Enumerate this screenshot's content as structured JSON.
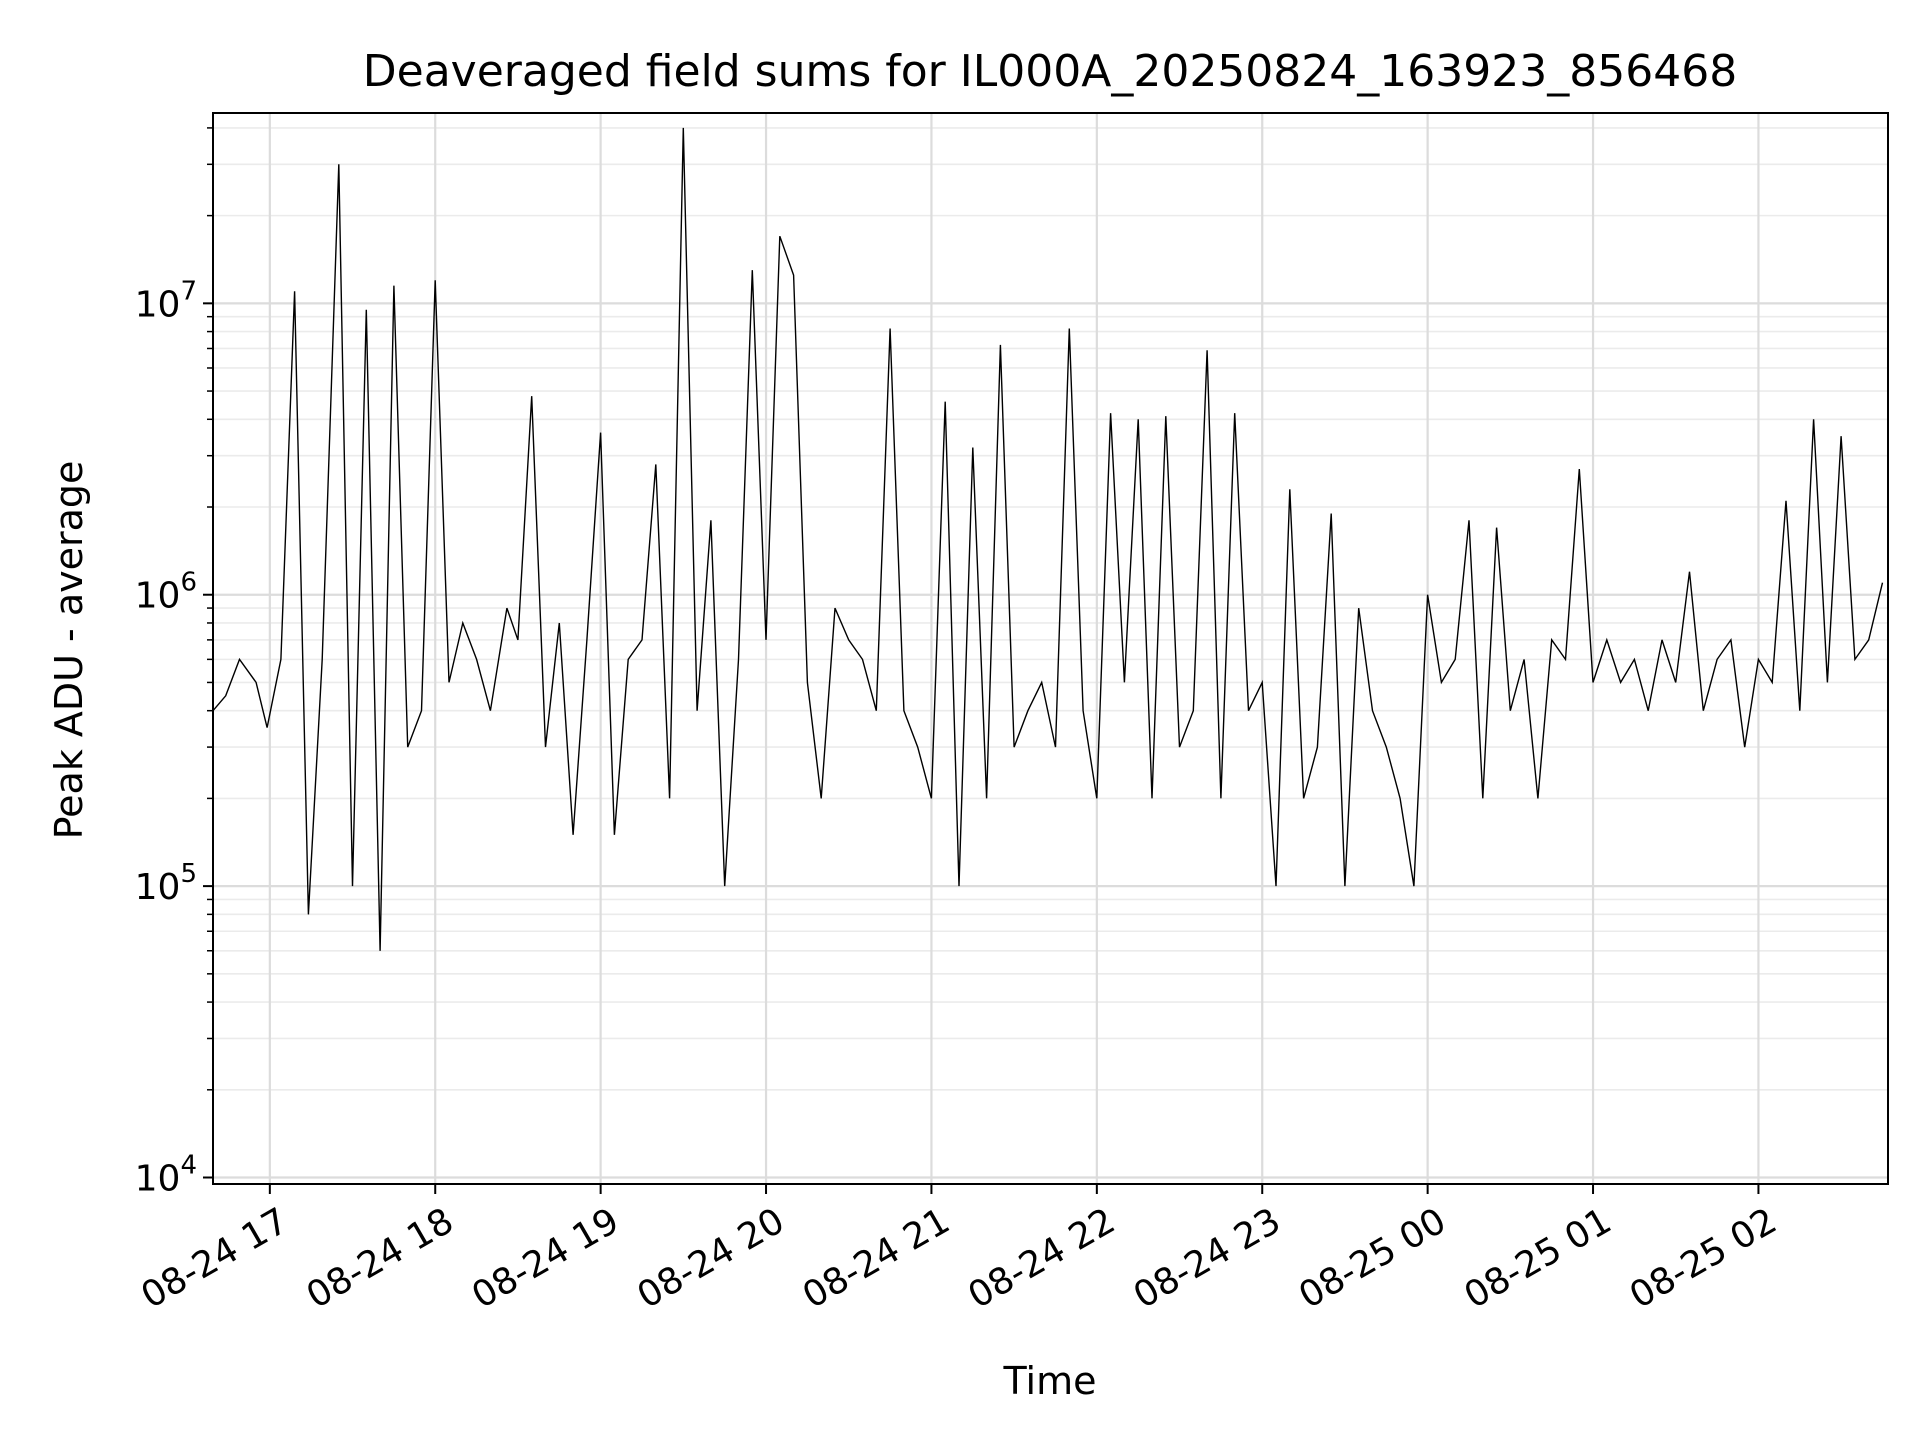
{
  "chart_data": {
    "type": "line",
    "title": "Deaveraged field sums for IL000A_20250824_163923_856468",
    "xlabel": "Time",
    "ylabel": "Peak ADU - average",
    "x_ticks": [
      "08-24 17",
      "08-24 18",
      "08-24 19",
      "08-24 20",
      "08-24 21",
      "08-24 22",
      "08-24 23",
      "08-25 00",
      "08-25 01",
      "08-25 02"
    ],
    "x_tick_values": [
      "2025-08-24T17:00",
      "2025-08-24T18:00",
      "2025-08-24T19:00",
      "2025-08-24T20:00",
      "2025-08-24T21:00",
      "2025-08-24T22:00",
      "2025-08-24T23:00",
      "2025-08-25T00:00",
      "2025-08-25T01:00",
      "2025-08-25T02:00"
    ],
    "xlim": [
      "2025-08-24T16:39:23",
      "2025-08-25T02:47:00"
    ],
    "y_scale": "log",
    "ylim": [
      9500,
      45000000
    ],
    "y_ticks": [
      {
        "base": "10",
        "exp": "4",
        "value": 10000
      },
      {
        "base": "10",
        "exp": "5",
        "value": 100000
      },
      {
        "base": "10",
        "exp": "6",
        "value": 1000000
      },
      {
        "base": "10",
        "exp": "7",
        "value": 10000000
      }
    ],
    "grid": true,
    "line_color": "#000000",
    "series": [
      {
        "x": [
          "2025-08-24T16:39:23",
          "2025-08-24T16:44:00",
          "2025-08-24T16:49:00",
          "2025-08-24T16:55:00",
          "2025-08-24T16:59:00",
          "2025-08-24T17:04:00",
          "2025-08-24T17:09:00",
          "2025-08-24T17:14:00",
          "2025-08-24T17:19:00",
          "2025-08-24T17:25:00",
          "2025-08-24T17:30:00",
          "2025-08-24T17:35:00",
          "2025-08-24T17:40:00",
          "2025-08-24T17:45:00",
          "2025-08-24T17:50:00",
          "2025-08-24T17:55:00",
          "2025-08-24T18:00:00",
          "2025-08-24T18:05:00",
          "2025-08-24T18:10:00",
          "2025-08-24T18:15:00",
          "2025-08-24T18:20:00",
          "2025-08-24T18:26:00",
          "2025-08-24T18:30:00",
          "2025-08-24T18:35:00",
          "2025-08-24T18:40:00",
          "2025-08-24T18:45:00",
          "2025-08-24T18:50:00",
          "2025-08-24T18:55:00",
          "2025-08-24T19:00:00",
          "2025-08-24T19:05:00",
          "2025-08-24T19:10:00",
          "2025-08-24T19:15:00",
          "2025-08-24T19:20:00",
          "2025-08-24T19:25:00",
          "2025-08-24T19:30:00",
          "2025-08-24T19:35:00",
          "2025-08-24T19:40:00",
          "2025-08-24T19:45:00",
          "2025-08-24T19:50:00",
          "2025-08-24T19:55:00",
          "2025-08-24T20:00:00",
          "2025-08-24T20:05:00",
          "2025-08-24T20:10:00",
          "2025-08-24T20:15:00",
          "2025-08-24T20:20:00",
          "2025-08-24T20:25:00",
          "2025-08-24T20:30:00",
          "2025-08-24T20:35:00",
          "2025-08-24T20:40:00",
          "2025-08-24T20:45:00",
          "2025-08-24T20:50:00",
          "2025-08-24T20:55:00",
          "2025-08-24T21:00:00",
          "2025-08-24T21:05:00",
          "2025-08-24T21:10:00",
          "2025-08-24T21:15:00",
          "2025-08-24T21:20:00",
          "2025-08-24T21:25:00",
          "2025-08-24T21:30:00",
          "2025-08-24T21:35:00",
          "2025-08-24T21:40:00",
          "2025-08-24T21:45:00",
          "2025-08-24T21:50:00",
          "2025-08-24T21:55:00",
          "2025-08-24T22:00:00",
          "2025-08-24T22:05:00",
          "2025-08-24T22:10:00",
          "2025-08-24T22:15:00",
          "2025-08-24T22:20:00",
          "2025-08-24T22:25:00",
          "2025-08-24T22:30:00",
          "2025-08-24T22:35:00",
          "2025-08-24T22:40:00",
          "2025-08-24T22:45:00",
          "2025-08-24T22:50:00",
          "2025-08-24T22:55:00",
          "2025-08-24T23:00:00",
          "2025-08-24T23:05:00",
          "2025-08-24T23:10:00",
          "2025-08-24T23:15:00",
          "2025-08-24T23:20:00",
          "2025-08-24T23:25:00",
          "2025-08-24T23:30:00",
          "2025-08-24T23:35:00",
          "2025-08-24T23:40:00",
          "2025-08-24T23:45:00",
          "2025-08-24T23:50:00",
          "2025-08-24T23:55:00",
          "2025-08-25T00:00:00",
          "2025-08-25T00:05:00",
          "2025-08-25T00:10:00",
          "2025-08-25T00:15:00",
          "2025-08-25T00:20:00",
          "2025-08-25T00:25:00",
          "2025-08-25T00:30:00",
          "2025-08-25T00:35:00",
          "2025-08-25T00:40:00",
          "2025-08-25T00:45:00",
          "2025-08-25T00:50:00",
          "2025-08-25T00:55:00",
          "2025-08-25T01:00:00",
          "2025-08-25T01:05:00",
          "2025-08-25T01:10:00",
          "2025-08-25T01:15:00",
          "2025-08-25T01:20:00",
          "2025-08-25T01:25:00",
          "2025-08-25T01:30:00",
          "2025-08-25T01:35:00",
          "2025-08-25T01:40:00",
          "2025-08-25T01:45:00",
          "2025-08-25T01:50:00",
          "2025-08-25T01:55:00",
          "2025-08-25T02:00:00",
          "2025-08-25T02:05:00",
          "2025-08-25T02:10:00",
          "2025-08-25T02:15:00",
          "2025-08-25T02:20:00",
          "2025-08-25T02:25:00",
          "2025-08-25T02:30:00",
          "2025-08-25T02:35:00",
          "2025-08-25T02:40:00",
          "2025-08-25T02:45:00"
        ],
        "values": [
          400000,
          450000,
          600000,
          500000,
          350000,
          600000,
          11000000,
          80000,
          600000,
          30000000,
          100000,
          9500000,
          60000,
          11500000,
          300000,
          400000,
          12000000,
          500000,
          800000,
          600000,
          400000,
          900000,
          700000,
          4800000,
          300000,
          800000,
          150000,
          700000,
          3600000,
          150000,
          600000,
          700000,
          2800000,
          200000,
          40000000,
          400000,
          1800000,
          100000,
          600000,
          13000000,
          700000,
          17000000,
          12500000,
          500000,
          200000,
          900000,
          700000,
          600000,
          400000,
          8200000,
          400000,
          300000,
          200000,
          4600000,
          100000,
          3200000,
          200000,
          7200000,
          300000,
          400000,
          500000,
          300000,
          8200000,
          400000,
          200000,
          4200000,
          500000,
          4000000,
          200000,
          4100000,
          300000,
          400000,
          6900000,
          200000,
          4200000,
          400000,
          500000,
          100000,
          2300000,
          200000,
          300000,
          1900000,
          100000,
          900000,
          400000,
          300000,
          200000,
          100000,
          1000000,
          500000,
          600000,
          1800000,
          200000,
          1700000,
          400000,
          600000,
          200000,
          700000,
          600000,
          2700000,
          500000,
          700000,
          500000,
          600000,
          400000,
          700000,
          500000,
          1200000,
          400000,
          600000,
          700000,
          300000,
          600000,
          500000,
          2100000,
          400000,
          4000000,
          500000,
          3500000,
          600000,
          700000,
          1100000
        ]
      }
    ]
  }
}
